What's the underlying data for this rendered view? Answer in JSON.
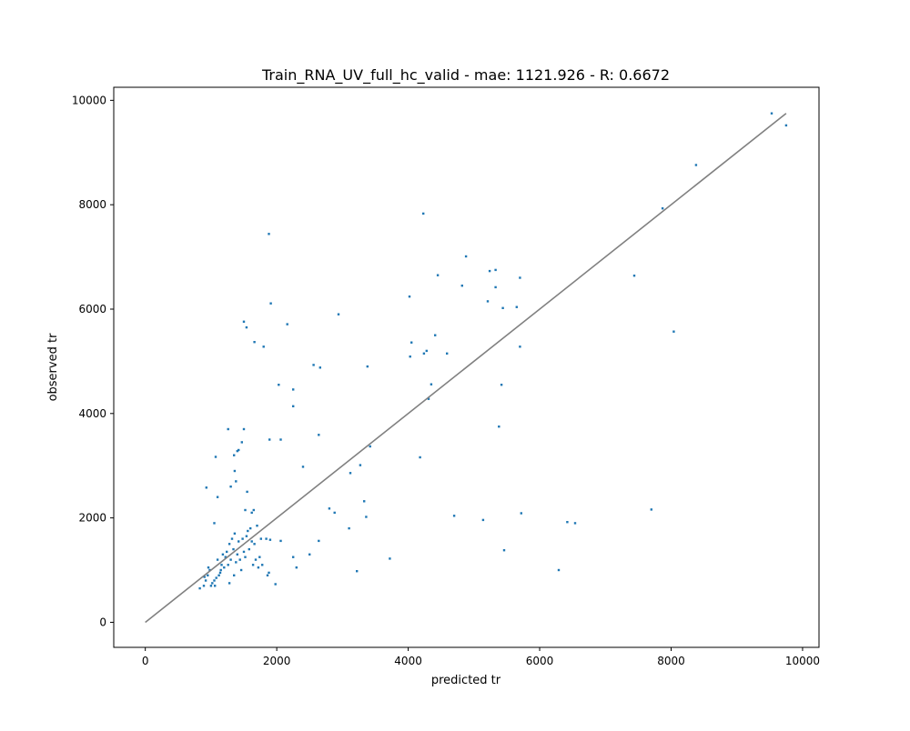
{
  "chart_data": {
    "type": "scatter",
    "title": "Train_RNA_UV_full_hc_valid - mae: 1121.926 - R: 0.6672",
    "xlabel": "predicted tr",
    "ylabel": "observed tr",
    "xlim": [
      -480,
      10250
    ],
    "ylim": [
      -480,
      10250
    ],
    "xticks": [
      0,
      2000,
      4000,
      6000,
      8000,
      10000
    ],
    "yticks": [
      0,
      2000,
      4000,
      6000,
      8000,
      10000
    ],
    "xtick_labels": [
      "0",
      "2000",
      "4000",
      "6000",
      "8000",
      "10000"
    ],
    "ytick_labels": [
      "0",
      "2000",
      "4000",
      "6000",
      "8000",
      "10000"
    ],
    "grid": false,
    "colors": {
      "points": "#1f77b4",
      "identity_line": "#808080"
    },
    "identity_line": {
      "x": [
        0,
        9750
      ],
      "y": [
        0,
        9750
      ]
    },
    "points": [
      [
        830,
        650
      ],
      [
        890,
        700
      ],
      [
        920,
        800
      ],
      [
        950,
        900
      ],
      [
        960,
        1050
      ],
      [
        980,
        1000
      ],
      [
        1000,
        700
      ],
      [
        1020,
        750
      ],
      [
        1050,
        800
      ],
      [
        1060,
        700
      ],
      [
        1080,
        850
      ],
      [
        1100,
        1200
      ],
      [
        1120,
        900
      ],
      [
        1140,
        950
      ],
      [
        1160,
        1100
      ],
      [
        1180,
        1300
      ],
      [
        1200,
        1050
      ],
      [
        1220,
        1250
      ],
      [
        1240,
        1350
      ],
      [
        1260,
        1100
      ],
      [
        1280,
        1500
      ],
      [
        1300,
        1200
      ],
      [
        1320,
        1600
      ],
      [
        1340,
        1400
      ],
      [
        1360,
        1700
      ],
      [
        1380,
        1150
      ],
      [
        1400,
        1300
      ],
      [
        1420,
        1550
      ],
      [
        1440,
        1200
      ],
      [
        1460,
        1000
      ],
      [
        1480,
        1600
      ],
      [
        1500,
        1350
      ],
      [
        1520,
        1250
      ],
      [
        1540,
        1650
      ],
      [
        1560,
        1750
      ],
      [
        1580,
        1400
      ],
      [
        1600,
        1800
      ],
      [
        1620,
        1550
      ],
      [
        1640,
        1100
      ],
      [
        1660,
        1500
      ],
      [
        1680,
        1200
      ],
      [
        1700,
        1850
      ],
      [
        1720,
        1050
      ],
      [
        1740,
        1250
      ],
      [
        1760,
        1600
      ],
      [
        1780,
        1100
      ],
      [
        1280,
        750
      ],
      [
        1350,
        900
      ],
      [
        1150,
        1000
      ],
      [
        900,
        870
      ],
      [
        1050,
        1900
      ],
      [
        1100,
        2400
      ],
      [
        1260,
        3700
      ],
      [
        1300,
        2600
      ],
      [
        1350,
        3200
      ],
      [
        1380,
        2700
      ],
      [
        1420,
        3300
      ],
      [
        1470,
        3450
      ],
      [
        1500,
        3700
      ],
      [
        1550,
        2500
      ],
      [
        1620,
        2100
      ],
      [
        1650,
        2150
      ],
      [
        1520,
        2150
      ],
      [
        930,
        2580
      ],
      [
        1070,
        3170
      ],
      [
        1400,
        3280
      ],
      [
        1360,
        2900
      ],
      [
        1840,
        1600
      ],
      [
        1900,
        1580
      ],
      [
        1860,
        900
      ],
      [
        1880,
        950
      ],
      [
        1980,
        730
      ],
      [
        2060,
        1560
      ],
      [
        2250,
        1250
      ],
      [
        2300,
        1050
      ],
      [
        2500,
        1300
      ],
      [
        2640,
        1560
      ],
      [
        2800,
        2180
      ],
      [
        2880,
        2100
      ],
      [
        3100,
        1800
      ],
      [
        3220,
        980
      ],
      [
        3360,
        2020
      ],
      [
        3330,
        2320
      ],
      [
        3270,
        3010
      ],
      [
        3120,
        2860
      ],
      [
        3420,
        3370
      ],
      [
        3380,
        4900
      ],
      [
        2400,
        2980
      ],
      [
        2640,
        3590
      ],
      [
        2060,
        3500
      ],
      [
        1890,
        3500
      ],
      [
        2250,
        4140
      ],
      [
        2250,
        4460
      ],
      [
        2030,
        4550
      ],
      [
        2560,
        4930
      ],
      [
        2660,
        4880
      ],
      [
        1800,
        5280
      ],
      [
        1660,
        5370
      ],
      [
        1540,
        5650
      ],
      [
        1500,
        5760
      ],
      [
        2160,
        5710
      ],
      [
        2940,
        5900
      ],
      [
        1910,
        6110
      ],
      [
        1880,
        7440
      ],
      [
        3720,
        1220
      ],
      [
        4700,
        2040
      ],
      [
        5140,
        1960
      ],
      [
        5460,
        1380
      ],
      [
        5720,
        2090
      ],
      [
        6290,
        1000
      ],
      [
        6420,
        1920
      ],
      [
        6540,
        1900
      ],
      [
        7700,
        2160
      ],
      [
        4180,
        3160
      ],
      [
        4310,
        4280
      ],
      [
        4350,
        4560
      ],
      [
        5380,
        3750
      ],
      [
        5420,
        4550
      ],
      [
        5700,
        5280
      ],
      [
        4030,
        5090
      ],
      [
        4050,
        5360
      ],
      [
        4240,
        5150
      ],
      [
        4280,
        5200
      ],
      [
        4410,
        5500
      ],
      [
        4590,
        5150
      ],
      [
        4020,
        6240
      ],
      [
        4450,
        6650
      ],
      [
        4820,
        6450
      ],
      [
        4880,
        7010
      ],
      [
        5210,
        6150
      ],
      [
        5240,
        6730
      ],
      [
        5330,
        6420
      ],
      [
        5330,
        6750
      ],
      [
        5440,
        6020
      ],
      [
        5650,
        6040
      ],
      [
        5700,
        6600
      ],
      [
        4230,
        7830
      ],
      [
        7440,
        6640
      ],
      [
        7870,
        7930
      ],
      [
        8040,
        5570
      ],
      [
        8380,
        8760
      ],
      [
        9530,
        9750
      ],
      [
        9750,
        9520
      ]
    ]
  }
}
